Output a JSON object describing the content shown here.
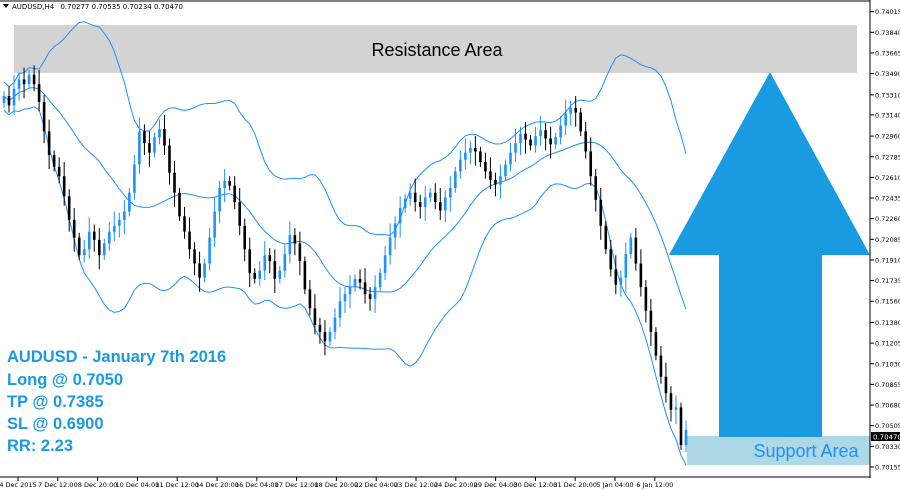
{
  "header": {
    "symbol": "AUDUSD,H4",
    "ohlc": "0.70277 0.70535 0.70234 0.70470"
  },
  "annotations": {
    "resistance_label": "Resistance Area",
    "support_label": "Support Area",
    "trade_lines": [
      "AUDUSD - January 7th 2016",
      "Long @ 0.7050",
      "TP @ 0.7385",
      "SL @ 0.6900",
      "RR: 2.23"
    ],
    "arrow_direction": "up"
  },
  "colors": {
    "bull": "#1e90ff",
    "bear": "#000000",
    "band": "#1e90ff",
    "resistance_zone": "#d3d3d3",
    "support_zone": "#add8e6",
    "arrow": "#1a9ae0",
    "info_text": "#1a9ae0",
    "price_tag": "#000000"
  },
  "chart_data": {
    "type": "candlestick",
    "title": "AUDUSD,H4  0.70277 0.70535 0.70234 0.70470",
    "ylim": [
      0.7007,
      0.7408
    ],
    "y_ticks": [
      "0.74015",
      "0.73840",
      "0.73665",
      "0.73490",
      "0.73310",
      "0.73140",
      "0.72960",
      "0.72785",
      "0.72610",
      "0.72435",
      "0.72260",
      "0.72085",
      "0.71910",
      "0.71735",
      "0.71560",
      "0.71380",
      "0.71205",
      "0.71030",
      "0.70855",
      "0.70680",
      "0.70505",
      "0.70330",
      "0.70155"
    ],
    "x_ticks": [
      "4 Dec 2015",
      "7 Dec 12:00",
      "8 Dec 20:00",
      "10 Dec 04:00",
      "11 Dec 12:00",
      "14 Dec 20:00",
      "16 Dec 04:00",
      "17 Dec 12:00",
      "18 Dec 20:00",
      "22 Dec 04:00",
      "23 Dec 12:00",
      "24 Dec 20:00",
      "29 Dec 04:00",
      "30 Dec 12:00",
      "31 Dec 20:00",
      "5 Jan 04:00",
      "6 Jan 12:00"
    ],
    "current_price": "0.70470",
    "resistance_zone": [
      0.7343,
      0.7385
    ],
    "support_zone": [
      0.7023,
      0.7047
    ],
    "close": [
      0.733,
      0.7322,
      0.7336,
      0.7344,
      0.734,
      0.7348,
      0.734,
      0.7325,
      0.73,
      0.728,
      0.727,
      0.7262,
      0.7245,
      0.7225,
      0.721,
      0.7195,
      0.72,
      0.7215,
      0.7208,
      0.7195,
      0.7205,
      0.7215,
      0.722,
      0.7225,
      0.7232,
      0.7248,
      0.7272,
      0.73,
      0.729,
      0.7282,
      0.7295,
      0.7302,
      0.7288,
      0.7265,
      0.7248,
      0.7228,
      0.7215,
      0.72,
      0.7188,
      0.7176,
      0.7188,
      0.721,
      0.7232,
      0.7252,
      0.7258,
      0.7254,
      0.724,
      0.722,
      0.72,
      0.718,
      0.7175,
      0.7182,
      0.7195,
      0.719,
      0.7175,
      0.7182,
      0.7196,
      0.7212,
      0.7205,
      0.719,
      0.7166,
      0.715,
      0.7136,
      0.713,
      0.7122,
      0.713,
      0.7142,
      0.7156,
      0.7162,
      0.7168,
      0.7175,
      0.7172,
      0.7162,
      0.7158,
      0.7168,
      0.718,
      0.7195,
      0.721,
      0.7222,
      0.7235,
      0.7243,
      0.7248,
      0.724,
      0.7236,
      0.7244,
      0.7248,
      0.724,
      0.7233,
      0.7244,
      0.7252,
      0.7266,
      0.7276,
      0.7282,
      0.7286,
      0.7283,
      0.7274,
      0.7266,
      0.7259,
      0.7255,
      0.7262,
      0.7272,
      0.7282,
      0.729,
      0.7298,
      0.7293,
      0.7288,
      0.7296,
      0.7301,
      0.7294,
      0.7289,
      0.7295,
      0.7305,
      0.7315,
      0.732,
      0.7316,
      0.73,
      0.7283,
      0.7262,
      0.7242,
      0.722,
      0.72,
      0.7183,
      0.717,
      0.7176,
      0.7196,
      0.721,
      0.7188,
      0.7168,
      0.7148,
      0.713,
      0.711,
      0.7092,
      0.7078,
      0.7064,
      0.7066,
      0.7034,
      0.7047
    ]
  }
}
